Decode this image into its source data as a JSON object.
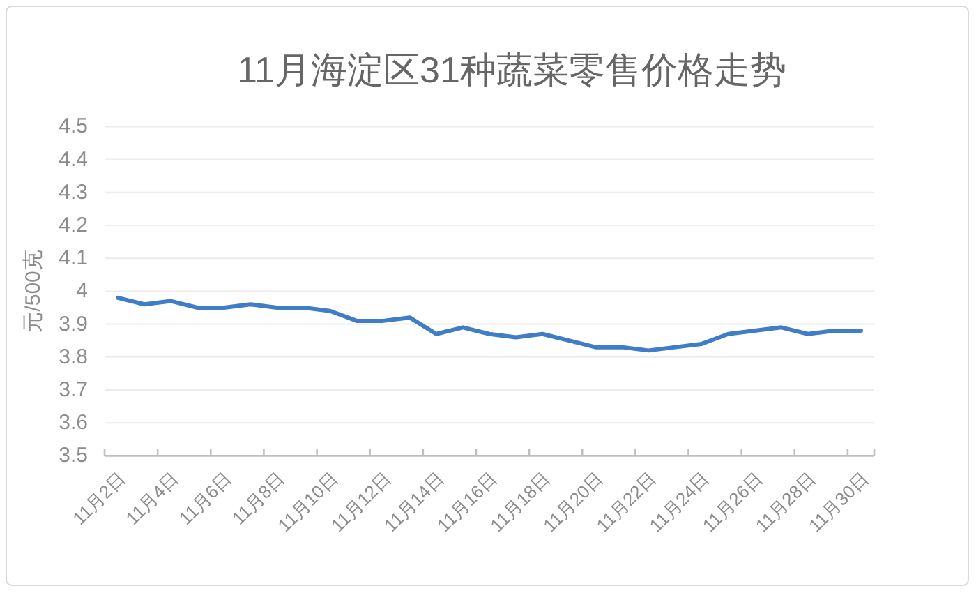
{
  "chart_data": {
    "type": "line",
    "title": "11月海淀区31种蔬菜零售价格走势",
    "ylabel": "元/500克",
    "categories": [
      "11月2日",
      null,
      "11月4日",
      null,
      "11月6日",
      null,
      "11月8日",
      null,
      "11月10日",
      null,
      "11月12日",
      null,
      "11月14日",
      null,
      "11月16日",
      null,
      "11月18日",
      null,
      "11月20日",
      null,
      "11月22日",
      null,
      "11月24日",
      null,
      "11月26日",
      null,
      "11月28日",
      null,
      "11月30日"
    ],
    "series": [
      {
        "color": "#3f7ec6",
        "values": [
          3.98,
          3.96,
          3.97,
          3.95,
          3.95,
          3.96,
          3.95,
          3.95,
          3.94,
          3.91,
          3.91,
          3.92,
          3.87,
          3.89,
          3.87,
          3.86,
          3.87,
          3.85,
          3.83,
          3.83,
          3.82,
          3.83,
          3.84,
          3.87,
          3.88,
          3.89,
          3.87,
          3.88,
          3.88
        ]
      }
    ],
    "ylim": [
      3.5,
      4.5
    ],
    "yticks": [
      3.5,
      3.6,
      3.7,
      3.8,
      3.9,
      4,
      4.1,
      4.2,
      4.3,
      4.4,
      4.5
    ],
    "grid": "y",
    "line_style": "solid"
  }
}
